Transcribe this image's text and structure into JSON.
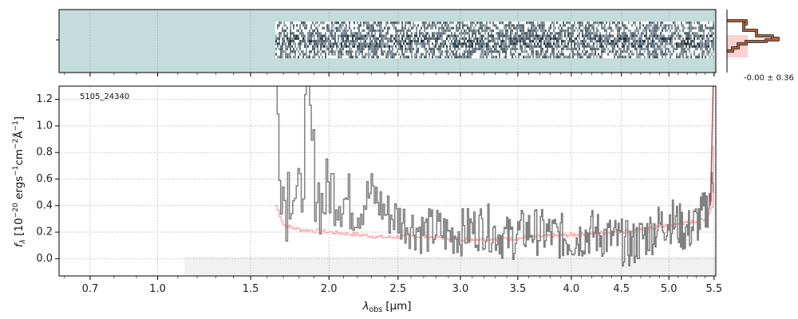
{
  "chart_data": [
    {
      "type": "heatmap",
      "panel": "2D spectrum",
      "description_colormap": "bone_r",
      "x_range_um": [
        0.58,
        5.52
      ],
      "data_x_range_um": [
        1.65,
        5.5
      ],
      "background_color": "#c4dcdc"
    },
    {
      "type": "line",
      "panel": "profile",
      "annotation": "-0.00 ± 0.36"
    },
    {
      "type": "line",
      "panel": "1D spectrum",
      "object_id": "5105_24340",
      "xlabel_main": "λ",
      "xlabel_sub": "obs",
      "xlabel_unit": "[μm]",
      "ylabel": "f_λ [10^-20 ergs^-1 cm^-2 Å^-1]",
      "x_scale": "sqrt",
      "xlim": [
        0.58,
        5.52
      ],
      "ylim": [
        -0.13,
        1.3
      ],
      "x_ticks": [
        0.7,
        1.0,
        1.5,
        2.0,
        2.5,
        3.0,
        3.5,
        4.0,
        4.5,
        5.0,
        5.5
      ],
      "x_tick_labels": [
        "0.7",
        "1.0",
        "1.5",
        "2.0",
        "2.5",
        "3.0",
        "3.5",
        "4.0",
        "4.5",
        "5.0",
        "5.5"
      ],
      "y_ticks": [
        0.0,
        0.2,
        0.4,
        0.6,
        0.8,
        1.0,
        1.2
      ],
      "y_tick_labels": [
        "0.0",
        "0.2",
        "0.4",
        "0.6",
        "0.8",
        "1.0",
        "1.2"
      ],
      "grid": true,
      "series": [
        {
          "role": "flux",
          "color": "#808080",
          "x": [
            1.65,
            1.7,
            1.75,
            1.8,
            1.85,
            1.9,
            1.95,
            2.0,
            2.1,
            2.2,
            2.3,
            2.4,
            2.5,
            2.6,
            2.7,
            2.8,
            2.9,
            3.0,
            3.2,
            3.4,
            3.6,
            3.8,
            4.0,
            4.2,
            4.4,
            4.6,
            4.8,
            5.0,
            5.2,
            5.4,
            5.5
          ],
          "y": [
            1.28,
            0.45,
            0.65,
            0.3,
            1.25,
            0.6,
            0.4,
            0.55,
            0.45,
            0.38,
            0.5,
            0.35,
            0.3,
            0.25,
            0.2,
            0.22,
            0.18,
            0.2,
            0.25,
            0.15,
            0.22,
            0.18,
            0.15,
            0.2,
            0.15,
            0.1,
            0.2,
            0.3,
            0.2,
            0.35,
            0.6
          ]
        },
        {
          "role": "model",
          "color": "#ffb0b0",
          "x": [
            1.65,
            1.7,
            1.8,
            2.0,
            2.2,
            2.4,
            2.6,
            2.8,
            3.0,
            3.2,
            3.4,
            3.6,
            3.8,
            4.0,
            4.2,
            4.4,
            4.6,
            4.8,
            5.0,
            5.2,
            5.4,
            5.48,
            5.5
          ],
          "y": [
            0.4,
            0.25,
            0.22,
            0.2,
            0.18,
            0.16,
            0.17,
            0.16,
            0.15,
            0.15,
            0.15,
            0.16,
            0.17,
            0.18,
            0.19,
            0.2,
            0.21,
            0.23,
            0.25,
            0.27,
            0.3,
            0.4,
            1.3
          ]
        }
      ]
    }
  ]
}
